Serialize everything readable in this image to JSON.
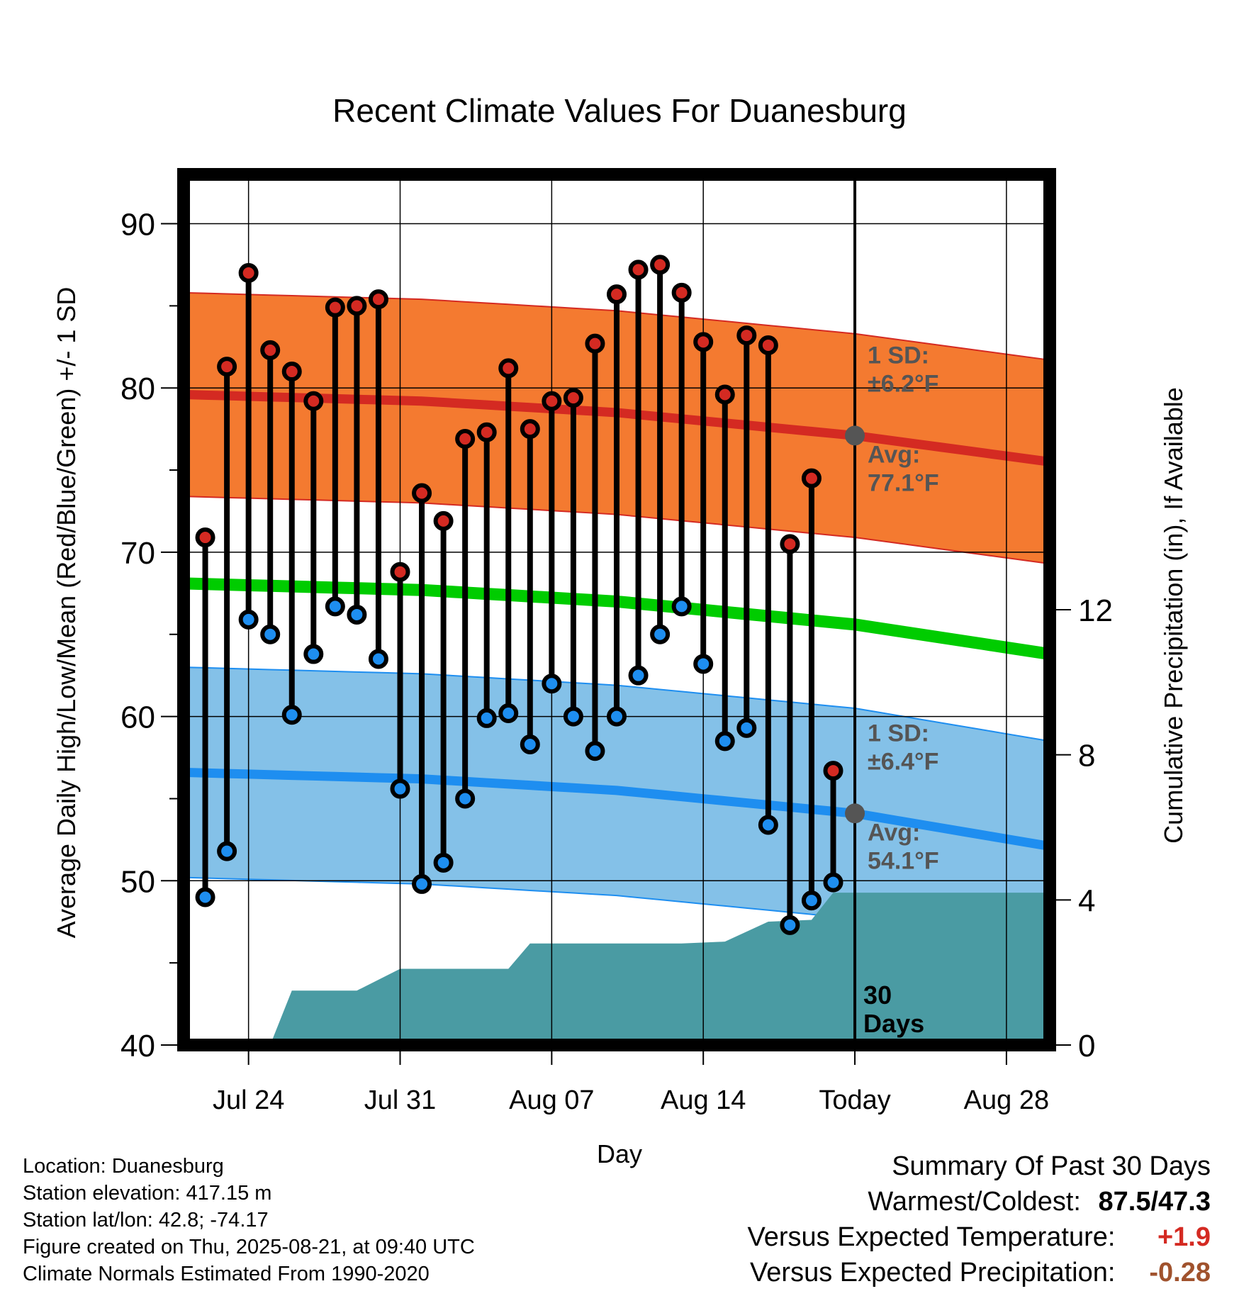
{
  "chart_data": {
    "type": "line",
    "title": "Recent Climate Values For Duanesburg",
    "xlabel": "Day",
    "ylabel": "Average Daily High/Low/Mean (Red/Blue/Green) +/- 1 SD",
    "y2label": "Cumulative Precipitation (in), If Available",
    "ylim": [
      40,
      93
    ],
    "y2lim": [
      0,
      24
    ],
    "yticks": [
      40,
      50,
      60,
      70,
      80,
      90
    ],
    "y2ticks": [
      0,
      4,
      8,
      12
    ],
    "grid": true,
    "x_tick_labels": [
      {
        "day": "2025-07-24",
        "label": "Jul 24"
      },
      {
        "day": "2025-07-31",
        "label": "Jul 31"
      },
      {
        "day": "2025-08-07",
        "label": "Aug 07"
      },
      {
        "day": "2025-08-14",
        "label": "Aug 14"
      },
      {
        "day": "2025-08-21",
        "label": "Today"
      },
      {
        "day": "2025-08-28",
        "label": "Aug 28"
      }
    ],
    "xlim": [
      "2025-07-21",
      "2025-08-30"
    ],
    "today": "2025-08-21",
    "period_label": "30\nDays",
    "observed": [
      {
        "day": "2025-07-22",
        "high": 70.9,
        "low": 49.0
      },
      {
        "day": "2025-07-23",
        "high": 81.3,
        "low": 51.8
      },
      {
        "day": "2025-07-24",
        "high": 87.0,
        "low": 65.9
      },
      {
        "day": "2025-07-25",
        "high": 82.3,
        "low": 65.0
      },
      {
        "day": "2025-07-26",
        "high": 81.0,
        "low": 60.1
      },
      {
        "day": "2025-07-27",
        "high": 79.2,
        "low": 63.8
      },
      {
        "day": "2025-07-28",
        "high": 84.9,
        "low": 66.7
      },
      {
        "day": "2025-07-29",
        "high": 85.0,
        "low": 66.2
      },
      {
        "day": "2025-07-30",
        "high": 85.4,
        "low": 63.5
      },
      {
        "day": "2025-07-31",
        "high": 68.8,
        "low": 55.6
      },
      {
        "day": "2025-08-01",
        "high": 73.6,
        "low": 49.8
      },
      {
        "day": "2025-08-02",
        "high": 71.9,
        "low": 51.1
      },
      {
        "day": "2025-08-03",
        "high": 76.9,
        "low": 55.0
      },
      {
        "day": "2025-08-04",
        "high": 77.3,
        "low": 59.9
      },
      {
        "day": "2025-08-05",
        "high": 81.2,
        "low": 60.2
      },
      {
        "day": "2025-08-06",
        "high": 77.5,
        "low": 58.3
      },
      {
        "day": "2025-08-07",
        "high": 79.2,
        "low": 62.0
      },
      {
        "day": "2025-08-08",
        "high": 79.4,
        "low": 60.0
      },
      {
        "day": "2025-08-09",
        "high": 82.7,
        "low": 57.9
      },
      {
        "day": "2025-08-10",
        "high": 85.7,
        "low": 60.0
      },
      {
        "day": "2025-08-11",
        "high": 87.2,
        "low": 62.5
      },
      {
        "day": "2025-08-12",
        "high": 87.5,
        "low": 65.0
      },
      {
        "day": "2025-08-13",
        "high": 85.8,
        "low": 66.7
      },
      {
        "day": "2025-08-14",
        "high": 82.8,
        "low": 63.2
      },
      {
        "day": "2025-08-15",
        "high": 79.6,
        "low": 58.5
      },
      {
        "day": "2025-08-16",
        "high": 83.2,
        "low": 59.3
      },
      {
        "day": "2025-08-17",
        "high": 82.6,
        "low": 53.4
      },
      {
        "day": "2025-08-18",
        "high": 70.5,
        "low": 47.3
      },
      {
        "day": "2025-08-19",
        "high": 74.5,
        "low": 48.8
      },
      {
        "day": "2025-08-20",
        "high": 56.7,
        "low": 49.9
      }
    ],
    "normals": {
      "high_avg": [
        {
          "day": "2025-07-21",
          "value": 79.6
        },
        {
          "day": "2025-08-01",
          "value": 79.2
        },
        {
          "day": "2025-08-10",
          "value": 78.5
        },
        {
          "day": "2025-08-21",
          "value": 77.1
        },
        {
          "day": "2025-08-30",
          "value": 75.5
        }
      ],
      "high_sd": 6.2,
      "low_avg": [
        {
          "day": "2025-07-21",
          "value": 56.6
        },
        {
          "day": "2025-08-01",
          "value": 56.2
        },
        {
          "day": "2025-08-10",
          "value": 55.5
        },
        {
          "day": "2025-08-21",
          "value": 54.1
        },
        {
          "day": "2025-08-30",
          "value": 52.1
        }
      ],
      "low_sd": 6.4,
      "mean_avg": [
        {
          "day": "2025-07-21",
          "value": 68.1
        },
        {
          "day": "2025-08-01",
          "value": 67.7
        },
        {
          "day": "2025-08-10",
          "value": 67.0
        },
        {
          "day": "2025-08-21",
          "value": 65.6
        },
        {
          "day": "2025-08-30",
          "value": 63.8
        }
      ]
    },
    "precip_cumulative": [
      {
        "day": "2025-07-21",
        "value": 0.0
      },
      {
        "day": "2025-07-25",
        "value": 0.0
      },
      {
        "day": "2025-07-26",
        "value": 1.5
      },
      {
        "day": "2025-07-29",
        "value": 1.5
      },
      {
        "day": "2025-07-31",
        "value": 2.1
      },
      {
        "day": "2025-08-05",
        "value": 2.1
      },
      {
        "day": "2025-08-06",
        "value": 2.8
      },
      {
        "day": "2025-08-13",
        "value": 2.8
      },
      {
        "day": "2025-08-15",
        "value": 2.85
      },
      {
        "day": "2025-08-17",
        "value": 3.4
      },
      {
        "day": "2025-08-19",
        "value": 3.45
      },
      {
        "day": "2025-08-20",
        "value": 4.2
      },
      {
        "day": "2025-08-30",
        "value": 4.2
      }
    ],
    "annotations": {
      "high_sd_label": "1 SD:",
      "high_sd_value": "±6.2°F",
      "high_avg_label": "Avg:",
      "high_avg_value": "77.1°F",
      "low_sd_label": "1 SD:",
      "low_sd_value": "±6.4°F",
      "low_avg_label": "Avg:",
      "low_avg_value": "54.1°F"
    }
  },
  "colors": {
    "high_band": "#f47a30",
    "high_line": "#d42a22",
    "low_band": "#84c1e8",
    "low_line": "#1e8ef0",
    "mean_line": "#00cc00",
    "precip": "#4a9ba3",
    "high_dot": "#d42a22",
    "low_dot": "#1e8ef0",
    "annotation": "#555555",
    "positive": "#d42a22",
    "negative": "#a0522d"
  },
  "info": {
    "location": "Location: Duanesburg",
    "elevation": "Station elevation: 417.15 m",
    "latlon": "Station lat/lon: 42.8; -74.17",
    "created": "Figure created on Thu, 2025-08-21, at 09:40 UTC",
    "normals": "Climate Normals Estimated From 1990-2020"
  },
  "summary": {
    "title": "Summary Of Past 30 Days",
    "warm_cold_label": "Warmest/Coldest:",
    "warm_cold_value": "87.5/47.3",
    "temp_label": "Versus Expected Temperature:",
    "temp_value": "+1.9",
    "precip_label": "Versus Expected Precipitation:",
    "precip_value": "-0.28"
  }
}
